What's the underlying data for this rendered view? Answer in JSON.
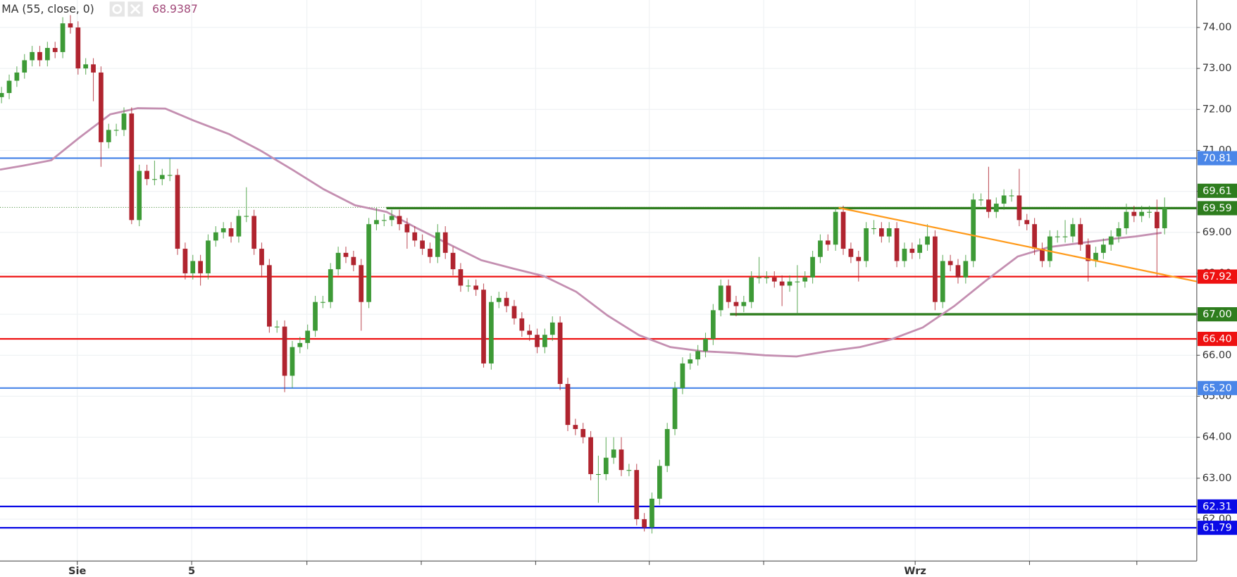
{
  "chart_data": {
    "type": "candlestick",
    "legend_label": "MA (55, close, 0)",
    "legend_value": 68.9387,
    "xlim": [
      -0.2,
      156.2
    ],
    "ylim": [
      60.98,
      74.67
    ],
    "grid": true,
    "xticks": [
      {
        "value": 9.9,
        "label": "Sie"
      },
      {
        "value": 24.85,
        "label": "5"
      },
      {
        "value": 119.4,
        "label": "Wrz"
      }
    ],
    "yticks": [
      {
        "value": 62,
        "label": "62.00"
      },
      {
        "value": 63,
        "label": "63.00"
      },
      {
        "value": 64,
        "label": "64.00"
      },
      {
        "value": 65,
        "label": "65.00"
      },
      {
        "value": 66,
        "label": "66.00"
      },
      {
        "value": 67,
        "label": "67.00"
      },
      {
        "value": 68,
        "label": "68.00"
      },
      {
        "value": 69,
        "label": "69.00"
      },
      {
        "value": 70,
        "label": "70.00"
      },
      {
        "value": 71,
        "label": "71.00"
      },
      {
        "value": 72,
        "label": "72.00"
      },
      {
        "value": 73,
        "label": "73.00"
      },
      {
        "value": 74,
        "label": "74.00"
      }
    ],
    "candles": {
      "up_color": "#3d9a36",
      "down_color": "#b0242f",
      "open": [
        72.3,
        72.4,
        72.7,
        72.9,
        73.2,
        73.4,
        73.2,
        73.5,
        73.4,
        74.1,
        74.0,
        73.0,
        73.1,
        72.9,
        71.2,
        71.5,
        71.5,
        71.9,
        69.3,
        70.5,
        70.3,
        70.3,
        70.4,
        70.4,
        68.6,
        68.0,
        68.3,
        68.0,
        68.8,
        69.0,
        69.1,
        68.9,
        69.4,
        69.4,
        68.6,
        68.2,
        66.7,
        66.7,
        65.5,
        66.2,
        66.3,
        66.6,
        67.3,
        67.3,
        68.1,
        68.5,
        68.4,
        68.2,
        67.3,
        69.2,
        69.3,
        69.3,
        69.4,
        69.2,
        69.0,
        68.8,
        68.6,
        68.4,
        69.0,
        68.5,
        68.1,
        67.7,
        67.7,
        67.6,
        65.8,
        67.3,
        67.4,
        67.2,
        66.9,
        66.6,
        66.5,
        66.2,
        66.5,
        66.8,
        65.3,
        64.3,
        64.2,
        64.0,
        63.1,
        63.1,
        63.5,
        63.7,
        63.2,
        63.2,
        62.0,
        61.8,
        62.5,
        63.3,
        64.2,
        65.2,
        65.8,
        65.9,
        66.1,
        66.4,
        67.1,
        67.7,
        67.3,
        67.2,
        67.3,
        67.9,
        67.9,
        67.9,
        67.8,
        67.7,
        67.8,
        67.8,
        67.9,
        68.4,
        68.8,
        68.7,
        69.5,
        68.6,
        68.4,
        68.3,
        69.1,
        69.1,
        68.9,
        69.1,
        68.3,
        68.6,
        68.5,
        68.7,
        68.9,
        67.3,
        68.3,
        68.2,
        67.9,
        68.3,
        69.8,
        69.8,
        69.5,
        69.7,
        69.9,
        69.9,
        69.3,
        69.2,
        68.6,
        68.3,
        68.9,
        68.9,
        68.9,
        69.2,
        68.7,
        68.3,
        68.5,
        68.7,
        68.9,
        69.1,
        69.5,
        69.4,
        69.5,
        69.5,
        69.1
      ],
      "high": [
        72.55,
        72.85,
        73.05,
        73.35,
        73.55,
        73.55,
        73.65,
        73.65,
        74.25,
        74.3,
        74.15,
        73.25,
        73.25,
        73.05,
        71.65,
        71.65,
        72.05,
        72.05,
        70.65,
        70.65,
        70.75,
        70.55,
        70.8,
        70.55,
        68.75,
        68.45,
        68.45,
        68.95,
        69.15,
        69.25,
        69.25,
        69.55,
        70.1,
        69.55,
        68.75,
        68.35,
        66.85,
        66.85,
        66.35,
        66.45,
        66.75,
        67.45,
        67.45,
        68.25,
        68.65,
        68.65,
        68.55,
        68.35,
        69.35,
        69.6,
        69.45,
        69.55,
        69.55,
        69.35,
        69.15,
        68.95,
        68.75,
        69.2,
        69.15,
        68.65,
        68.25,
        67.85,
        67.85,
        67.75,
        67.45,
        67.55,
        67.55,
        67.35,
        67.05,
        66.75,
        66.65,
        66.65,
        66.95,
        66.95,
        65.45,
        64.45,
        64.35,
        64.15,
        63.55,
        64.0,
        64.0,
        64.0,
        63.35,
        63.35,
        62.15,
        62.65,
        63.45,
        64.35,
        65.35,
        65.95,
        66.05,
        66.25,
        66.55,
        67.25,
        67.85,
        67.85,
        67.45,
        67.45,
        68.05,
        68.4,
        68.05,
        68.05,
        67.95,
        67.95,
        68.2,
        68.05,
        68.55,
        68.95,
        68.95,
        69.6,
        69.65,
        68.75,
        68.55,
        69.25,
        69.3,
        69.25,
        69.25,
        69.25,
        68.75,
        68.75,
        68.85,
        69.2,
        69.05,
        68.45,
        68.45,
        68.35,
        68.45,
        69.95,
        69.95,
        70.6,
        69.85,
        70.05,
        70.05,
        70.55,
        69.45,
        69.35,
        68.75,
        69.05,
        69.05,
        69.3,
        69.35,
        69.35,
        68.85,
        68.65,
        68.85,
        69.05,
        69.25,
        69.7,
        69.65,
        69.65,
        69.65,
        69.8,
        69.85
      ],
      "low": [
        72.15,
        72.25,
        72.55,
        72.75,
        73.05,
        73.05,
        73.05,
        73.25,
        73.25,
        73.85,
        72.85,
        72.85,
        72.2,
        70.6,
        71.05,
        71.35,
        71.35,
        69.2,
        69.15,
        70.15,
        70.15,
        70.15,
        70.25,
        68.45,
        67.85,
        67.85,
        67.7,
        67.85,
        68.65,
        68.85,
        68.75,
        68.75,
        69.25,
        68.45,
        67.9,
        66.55,
        66.55,
        65.1,
        65.2,
        66.05,
        66.15,
        66.45,
        67.15,
        67.15,
        67.95,
        68.25,
        68.05,
        66.6,
        67.15,
        69.05,
        69.15,
        69.15,
        69.05,
        68.6,
        68.65,
        68.45,
        68.25,
        68.25,
        68.35,
        67.95,
        67.55,
        67.55,
        67.45,
        65.7,
        65.65,
        67.15,
        67.05,
        66.75,
        66.45,
        66.35,
        66.05,
        66.05,
        66.35,
        65.15,
        64.15,
        64.05,
        63.85,
        62.95,
        62.4,
        62.95,
        63.35,
        63.05,
        63.05,
        61.85,
        61.7,
        61.65,
        62.35,
        63.15,
        64.05,
        65.05,
        65.65,
        65.75,
        65.95,
        66.25,
        66.95,
        67.15,
        66.95,
        67.05,
        67.15,
        67.75,
        67.75,
        67.65,
        67.2,
        67.55,
        67.0,
        67.65,
        67.75,
        68.25,
        68.55,
        68.55,
        68.45,
        68.25,
        67.8,
        68.15,
        68.95,
        68.75,
        68.75,
        68.15,
        68.15,
        68.35,
        68.35,
        68.55,
        67.1,
        67.15,
        68.05,
        67.75,
        67.75,
        68.15,
        69.65,
        69.35,
        69.35,
        69.55,
        69.75,
        69.15,
        69.05,
        68.45,
        68.15,
        68.15,
        68.75,
        68.75,
        68.75,
        68.55,
        67.8,
        68.15,
        68.35,
        68.55,
        68.75,
        68.95,
        69.25,
        69.25,
        69.35,
        67.9,
        68.95
      ],
      "close": [
        72.4,
        72.7,
        72.9,
        73.2,
        73.4,
        73.2,
        73.5,
        73.4,
        74.1,
        74.0,
        73.0,
        73.1,
        72.9,
        71.2,
        71.5,
        71.5,
        71.9,
        69.3,
        70.5,
        70.3,
        70.3,
        70.4,
        70.4,
        68.6,
        68.0,
        68.3,
        68.0,
        68.8,
        69.0,
        69.1,
        68.9,
        69.4,
        69.4,
        68.6,
        68.2,
        66.7,
        66.7,
        65.5,
        66.2,
        66.3,
        66.6,
        67.3,
        67.3,
        68.1,
        68.5,
        68.4,
        68.2,
        67.3,
        69.2,
        69.3,
        69.3,
        69.4,
        69.2,
        69.0,
        68.8,
        68.6,
        68.4,
        69.0,
        68.5,
        68.1,
        67.7,
        67.7,
        67.6,
        65.8,
        67.3,
        67.4,
        67.2,
        66.9,
        66.6,
        66.5,
        66.2,
        66.5,
        66.8,
        65.3,
        64.3,
        64.2,
        64.0,
        63.1,
        63.1,
        63.5,
        63.7,
        63.2,
        63.2,
        62.0,
        61.8,
        62.5,
        63.3,
        64.2,
        65.2,
        65.8,
        65.9,
        66.1,
        66.4,
        67.1,
        67.7,
        67.3,
        67.2,
        67.3,
        67.9,
        67.9,
        67.9,
        67.8,
        67.7,
        67.8,
        67.8,
        67.9,
        68.4,
        68.8,
        68.7,
        69.5,
        68.6,
        68.4,
        68.3,
        69.1,
        69.1,
        68.9,
        69.1,
        68.3,
        68.6,
        68.5,
        68.7,
        68.9,
        67.3,
        68.3,
        68.2,
        67.9,
        68.3,
        69.8,
        69.8,
        69.5,
        69.7,
        69.9,
        69.9,
        69.3,
        69.2,
        68.6,
        68.3,
        68.9,
        68.9,
        68.9,
        69.2,
        68.7,
        68.3,
        68.5,
        68.7,
        68.9,
        69.1,
        69.5,
        69.4,
        69.5,
        69.5,
        69.1,
        69.6
      ]
    },
    "ma": {
      "name": "MA (55, close, 0)",
      "color": "#c48fb1",
      "x": [
        -0.2,
        2.9,
        6.5,
        10.1,
        14.2,
        17.8,
        21.4,
        25.1,
        29.7,
        33.8,
        38.0,
        42.1,
        46.2,
        50.3,
        54.4,
        58.6,
        62.7,
        66.8,
        70.9,
        75.1,
        79.2,
        83.3,
        87.4,
        91.5,
        95.7,
        99.8,
        103.9,
        108.0,
        112.2,
        116.3,
        120.4,
        124.5,
        128.7,
        132.8,
        136.9,
        141.0,
        145.1,
        148.2,
        151.6
      ],
      "values": [
        70.53,
        70.63,
        70.76,
        71.3,
        71.88,
        72.03,
        72.02,
        71.73,
        71.4,
        71.0,
        70.53,
        70.05,
        69.66,
        69.5,
        69.09,
        68.7,
        68.32,
        68.12,
        67.93,
        67.55,
        66.97,
        66.49,
        66.2,
        66.1,
        66.06,
        66.0,
        65.97,
        66.1,
        66.2,
        66.39,
        66.68,
        67.2,
        67.83,
        68.41,
        68.64,
        68.74,
        68.84,
        68.9,
        68.99
      ]
    },
    "trendline": {
      "color": "#ff9a1a",
      "x": [
        109.4,
        156.2
      ],
      "y": [
        69.6,
        67.8
      ]
    },
    "levels": [
      {
        "value": 70.81,
        "label": "70.81",
        "color": "#4a86e8"
      },
      {
        "value": 69.59,
        "label": "69.59",
        "color": "#2e7d1e",
        "x_start": 50.3
      },
      {
        "value": 67.92,
        "label": "67.92",
        "color": "#ee1111"
      },
      {
        "value": 67.0,
        "label": "67.00",
        "color": "#2e7d1e",
        "x_start": 95.2
      },
      {
        "value": 66.4,
        "label": "66.40",
        "color": "#ee1111"
      },
      {
        "value": 65.2,
        "label": "65.20",
        "color": "#4a86e8"
      },
      {
        "value": 62.31,
        "label": "62.31",
        "color": "#0a0ae6"
      },
      {
        "value": 61.79,
        "label": "61.79",
        "color": "#0a0ae6"
      }
    ],
    "last_price": {
      "value": 69.61,
      "label": "69.61",
      "color": "#2e7d1e"
    }
  }
}
